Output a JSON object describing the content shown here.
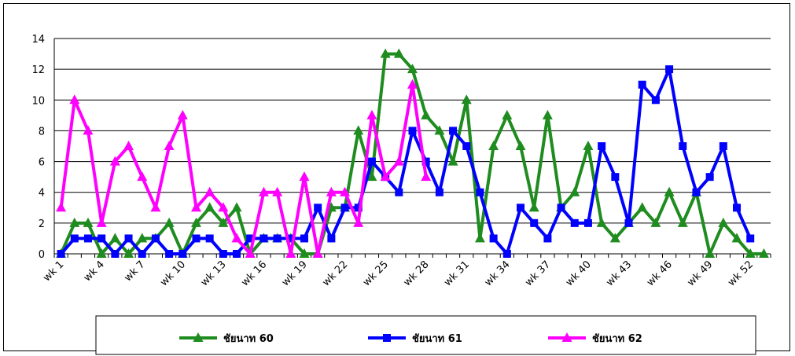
{
  "chart_data": {
    "type": "line",
    "title": "",
    "xlabel": "",
    "ylabel": "",
    "ylim": [
      0,
      14
    ],
    "yticks": [
      0,
      2,
      4,
      6,
      8,
      10,
      12,
      14
    ],
    "grid": true,
    "legend_position": "bottom",
    "categories": [
      "wk 1",
      "wk 2",
      "wk 3",
      "wk 4",
      "wk 5",
      "wk 6",
      "wk 7",
      "wk 8",
      "wk 9",
      "wk 10",
      "wk 11",
      "wk 12",
      "wk 13",
      "wk 14",
      "wk 15",
      "wk 16",
      "wk 17",
      "wk 18",
      "wk 19",
      "wk 20",
      "wk 21",
      "wk 22",
      "wk 23",
      "wk 24",
      "wk 25",
      "wk 26",
      "wk 27",
      "wk 28",
      "wk 29",
      "wk 30",
      "wk 31",
      "wk 32",
      "wk 33",
      "wk 34",
      "wk 35",
      "wk 36",
      "wk 37",
      "wk 38",
      "wk 39",
      "wk 40",
      "wk 41",
      "wk 42",
      "wk 43",
      "wk 44",
      "wk 45",
      "wk 46",
      "wk 47",
      "wk 48",
      "wk 49",
      "wk 50",
      "wk 51",
      "wk 52",
      "wk 53"
    ],
    "x_tick_labels": [
      "wk 1",
      "wk 4",
      "wk 7",
      "wk 10",
      "wk 13",
      "wk 16",
      "wk 19",
      "wk 22",
      "wk 25",
      "wk 28",
      "wk 31",
      "wk 34",
      "wk 37",
      "wk 40",
      "wk 43",
      "wk 46",
      "wk 49",
      "wk 52"
    ],
    "series": [
      {
        "name": "ชัยนาท 60",
        "color": "#1E8C1E",
        "marker": "triangle",
        "values": [
          0,
          2,
          2,
          0,
          1,
          0,
          1,
          1,
          2,
          0,
          2,
          3,
          2,
          3,
          0,
          1,
          1,
          1,
          0,
          0,
          3,
          3,
          8,
          5,
          13,
          13,
          12,
          9,
          8,
          6,
          10,
          1,
          7,
          9,
          7,
          3,
          9,
          3,
          4,
          7,
          2,
          1,
          2,
          3,
          2,
          4,
          2,
          4,
          0,
          2,
          1,
          0,
          0
        ]
      },
      {
        "name": "ชัยนาท 61",
        "color": "#0000FF",
        "marker": "square",
        "values": [
          0,
          1,
          1,
          1,
          0,
          1,
          0,
          1,
          0,
          0,
          1,
          1,
          0,
          0,
          1,
          1,
          1,
          1,
          1,
          3,
          1,
          3,
          3,
          6,
          5,
          4,
          8,
          6,
          4,
          8,
          7,
          4,
          1,
          0,
          3,
          2,
          1,
          3,
          2,
          2,
          7,
          5,
          2,
          11,
          10,
          12,
          7,
          4,
          5,
          7,
          3,
          1,
          null
        ]
      },
      {
        "name": "ชัยนาท 62",
        "color": "#FF00FF",
        "marker": "triangle",
        "values": [
          3,
          10,
          8,
          2,
          6,
          7,
          5,
          3,
          7,
          9,
          3,
          4,
          3,
          1,
          0,
          4,
          4,
          0,
          5,
          0,
          4,
          4,
          2,
          9,
          5,
          6,
          11,
          5,
          null,
          null,
          null,
          null,
          null,
          null,
          null,
          null,
          null,
          null,
          null,
          null,
          null,
          null,
          null,
          null,
          null,
          null,
          null,
          null,
          null,
          null,
          null,
          null,
          null
        ]
      }
    ]
  }
}
